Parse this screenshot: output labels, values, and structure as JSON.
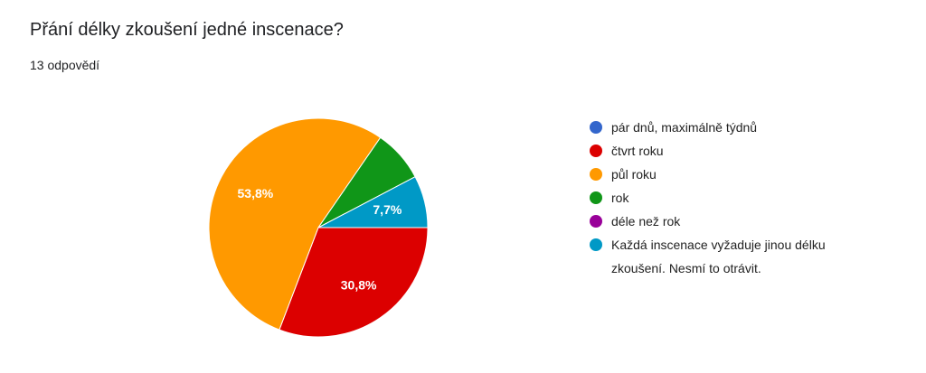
{
  "chart_data": {
    "type": "pie",
    "title": "Přání délky zkoušení jedné inscenace?",
    "subtitle": "13 odpovědí",
    "categories": [
      "pár dnů, maximálně týdnů",
      "čtvrt roku",
      "půl roku",
      "rok",
      "déle než rok",
      "Každá inscenace vyžaduje jinou délku zkoušení. Nesmí to otrávit."
    ],
    "values": [
      0,
      30.8,
      53.8,
      7.7,
      0,
      7.7
    ],
    "value_labels": [
      null,
      "30,8%",
      "53,8%",
      null,
      null,
      "7,7%"
    ],
    "colors": [
      "#3366cc",
      "#dc0000",
      "#ff9900",
      "#109618",
      "#990099",
      "#0099c6"
    ]
  }
}
